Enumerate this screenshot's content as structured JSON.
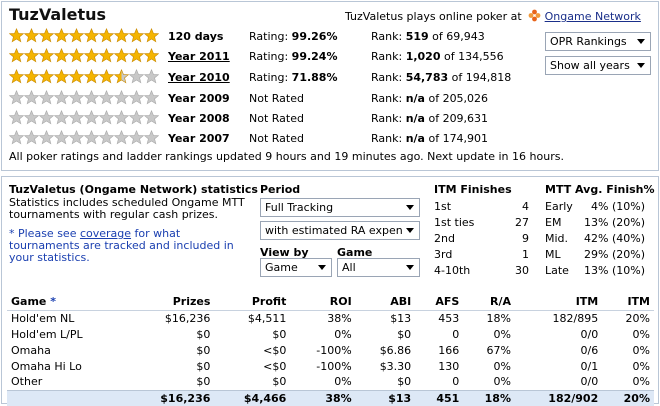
{
  "header": {
    "player_name": "TuzValetus",
    "plays_text": "TuzValetus plays online poker at",
    "network_link": "Ongame Network"
  },
  "ratings": [
    {
      "period": "120 days",
      "link": false,
      "stars": 10,
      "half": 0,
      "rating_label": "Rating:",
      "rating": "99.26%",
      "rank_label": "Rank:",
      "rank": "519",
      "of": "of 69,943"
    },
    {
      "period": "Year 2011",
      "link": true,
      "stars": 10,
      "half": 0,
      "rating_label": "Rating:",
      "rating": "99.24%",
      "rank_label": "Rank:",
      "rank": "1,020",
      "of": "of 134,556"
    },
    {
      "period": "Year 2010",
      "link": true,
      "stars": 7,
      "half": 1,
      "rating_label": "Rating:",
      "rating": "71.88%",
      "rank_label": "Rank:",
      "rank": "54,783",
      "of": "of 194,818"
    },
    {
      "period": "Year 2009",
      "link": false,
      "stars": 0,
      "half": 0,
      "rating_label": "Not Rated",
      "rating": "",
      "rank_label": "Rank:",
      "rank": "n/a",
      "of": "of 205,026"
    },
    {
      "period": "Year 2008",
      "link": false,
      "stars": 0,
      "half": 0,
      "rating_label": "Not Rated",
      "rating": "",
      "rank_label": "Rank:",
      "rank": "n/a",
      "of": "of 209,631"
    },
    {
      "period": "Year 2007",
      "link": false,
      "stars": 0,
      "half": 0,
      "rating_label": "Not Rated",
      "rating": "",
      "rank_label": "Rank:",
      "rank": "n/a",
      "of": "of 174,901"
    }
  ],
  "controls": {
    "opr_select": "OPR Rankings",
    "years_select": "Show all years"
  },
  "update_note": "All poker ratings and ladder rankings updated 9 hours and 19 minutes ago. Next update in 16 hours.",
  "stats": {
    "title": "TuzValetus (Ongame Network) statistics",
    "desc": "Statistics includes scheduled Ongame MTT tournaments with regular cash prizes.",
    "note_prefix": "* Please see ",
    "note_link": "coverage",
    "note_suffix": " for what tournaments are tracked and included in your statistics.",
    "period_label": "Period",
    "period_select": "Full Tracking",
    "ra_select": "with estimated RA expen",
    "viewby_label": "View by",
    "viewby_select": "Game",
    "game_label": "Game",
    "game_select": "All"
  },
  "itm": {
    "title": "ITM Finishes",
    "rows": [
      {
        "k": "1st",
        "v": "4"
      },
      {
        "k": "1st ties",
        "v": "27"
      },
      {
        "k": "2nd",
        "v": "9"
      },
      {
        "k": "3rd",
        "v": "1"
      },
      {
        "k": "4-10th",
        "v": "30"
      }
    ]
  },
  "finish": {
    "title": "MTT Avg. Finish%",
    "rows": [
      {
        "k": "Early",
        "v": "4% (10%)"
      },
      {
        "k": "EM",
        "v": "13% (20%)"
      },
      {
        "k": "Mid.",
        "v": "42% (40%)"
      },
      {
        "k": "ML",
        "v": "29% (20%)"
      },
      {
        "k": "Late",
        "v": "13% (10%)"
      }
    ]
  },
  "table": {
    "headers": [
      "Game",
      "Prizes",
      "Profit",
      "ROI",
      "ABI",
      "AFS",
      "R/A",
      "ITM",
      "ITM"
    ],
    "game_star": "*",
    "rows": [
      [
        "Hold'em NL",
        "$16,236",
        "$4,511",
        "38%",
        "$13",
        "453",
        "18%",
        "182/895",
        "20%"
      ],
      [
        "Hold'em L/PL",
        "$0",
        "$0",
        "0%",
        "$0",
        "0",
        "0%",
        "0/0",
        "0%"
      ],
      [
        "Omaha",
        "$0",
        "<$0",
        "-100%",
        "$6.86",
        "166",
        "67%",
        "0/6",
        "0%"
      ],
      [
        "Omaha Hi Lo",
        "$0",
        "<$0",
        "-100%",
        "$3.30",
        "130",
        "0%",
        "0/1",
        "0%"
      ],
      [
        "Other",
        "$0",
        "$0",
        "0%",
        "$0",
        "0",
        "0%",
        "0/0",
        "0%"
      ]
    ],
    "total": [
      "",
      "$16,236",
      "$4,466",
      "38%",
      "$13",
      "451",
      "18%",
      "182/902",
      "20%"
    ]
  },
  "colors": {
    "star_full": "#f4b400",
    "star_empty": "#c8c8c8",
    "link": "#1a2f8a",
    "total_row": "#dde8f6"
  }
}
